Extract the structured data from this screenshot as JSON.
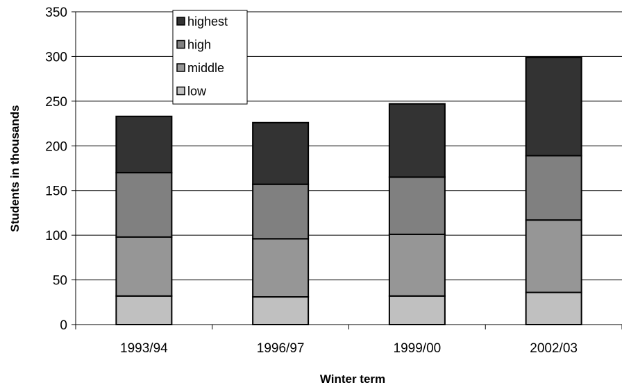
{
  "chart_data": {
    "type": "bar",
    "stacked": true,
    "categories": [
      "1993/94",
      "1996/97",
      "1999/00",
      "2002/03"
    ],
    "series": [
      {
        "name": "low",
        "values": [
          32,
          31,
          32,
          36
        ],
        "color": "#c0c0c0"
      },
      {
        "name": "middle",
        "values": [
          66,
          65,
          69,
          81
        ],
        "color": "#969696"
      },
      {
        "name": "high",
        "values": [
          72,
          61,
          64,
          72
        ],
        "color": "#808080"
      },
      {
        "name": "highest",
        "values": [
          63,
          69,
          82,
          110
        ],
        "color": "#333333"
      }
    ],
    "title": "",
    "xlabel": "Winter term",
    "ylabel": "Students in thousands",
    "ylim": [
      0,
      350
    ],
    "yticks": [
      0,
      50,
      100,
      150,
      200,
      250,
      300,
      350
    ],
    "grid": true,
    "legend_position": "top-center",
    "legend_order": [
      "highest",
      "high",
      "middle",
      "low"
    ]
  }
}
